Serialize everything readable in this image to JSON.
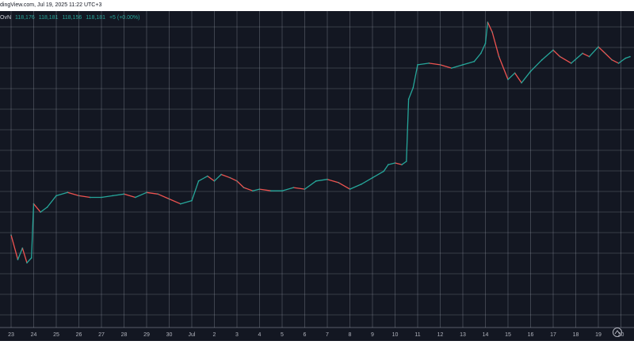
{
  "header": {
    "publisher_text": "dingView.com, Jul 19, 2025 11:22 UTC+3"
  },
  "ohlc": {
    "symbol_tail": "OvN",
    "open": "118,176",
    "high": "118,181",
    "low": "118,156",
    "close": "118,181",
    "change": "+5 (+0.00%)"
  },
  "colors": {
    "background": "#131722",
    "grid": "#9aa0ad",
    "up": "#26a69a",
    "down": "#ef5350",
    "axis_text": "#b2b5be"
  },
  "chart_data": {
    "type": "line",
    "title": "",
    "xlabel": "",
    "ylabel": "",
    "x_tick_labels": [
      "23",
      "24",
      "25",
      "26",
      "27",
      "28",
      "29",
      "30",
      "Jul",
      "2",
      "3",
      "4",
      "5",
      "6",
      "7",
      "8",
      "9",
      "10",
      "11",
      "12",
      "13",
      "14",
      "15",
      "16",
      "17",
      "18",
      "19",
      "20"
    ],
    "ylim": [
      103000,
      120500
    ],
    "grid": true,
    "series": [
      {
        "points": [
          [
            0.0,
            107300
          ],
          [
            0.3,
            105800
          ],
          [
            0.5,
            106500
          ],
          [
            0.7,
            105600
          ],
          [
            0.9,
            105900
          ],
          [
            1.0,
            109200
          ],
          [
            1.3,
            108700
          ],
          [
            1.6,
            109000
          ],
          [
            2.0,
            109700
          ],
          [
            2.5,
            109900
          ],
          [
            3.0,
            109700
          ],
          [
            3.5,
            109600
          ],
          [
            4.0,
            109600
          ],
          [
            4.5,
            109700
          ],
          [
            5.0,
            109800
          ],
          [
            5.5,
            109600
          ],
          [
            6.0,
            109900
          ],
          [
            6.5,
            109800
          ],
          [
            7.0,
            109500
          ],
          [
            7.5,
            109200
          ],
          [
            8.0,
            109400
          ],
          [
            8.3,
            110600
          ],
          [
            8.7,
            110900
          ],
          [
            9.0,
            110600
          ],
          [
            9.3,
            111000
          ],
          [
            9.7,
            110800
          ],
          [
            10.0,
            110600
          ],
          [
            10.3,
            110200
          ],
          [
            10.7,
            110000
          ],
          [
            11.0,
            110100
          ],
          [
            11.5,
            110000
          ],
          [
            12.0,
            110000
          ],
          [
            12.5,
            110200
          ],
          [
            13.0,
            110100
          ],
          [
            13.5,
            110600
          ],
          [
            14.0,
            110700
          ],
          [
            14.5,
            110500
          ],
          [
            15.0,
            110100
          ],
          [
            15.5,
            110400
          ],
          [
            16.0,
            110800
          ],
          [
            16.5,
            111200
          ],
          [
            16.7,
            111600
          ],
          [
            17.0,
            111700
          ],
          [
            17.3,
            111600
          ],
          [
            17.5,
            111800
          ],
          [
            17.6,
            115600
          ],
          [
            17.8,
            116300
          ],
          [
            18.0,
            117700
          ],
          [
            18.5,
            117800
          ],
          [
            19.0,
            117700
          ],
          [
            19.5,
            117500
          ],
          [
            20.0,
            117700
          ],
          [
            20.5,
            117900
          ],
          [
            20.8,
            118400
          ],
          [
            21.0,
            119000
          ],
          [
            21.1,
            120300
          ],
          [
            21.3,
            119700
          ],
          [
            21.6,
            118200
          ],
          [
            22.0,
            116800
          ],
          [
            22.3,
            117200
          ],
          [
            22.6,
            116600
          ],
          [
            23.0,
            117300
          ],
          [
            23.5,
            118000
          ],
          [
            24.0,
            118600
          ],
          [
            24.3,
            118200
          ],
          [
            24.8,
            117800
          ],
          [
            25.3,
            118400
          ],
          [
            25.6,
            118200
          ],
          [
            26.0,
            118800
          ],
          [
            26.3,
            118400
          ],
          [
            26.6,
            118000
          ],
          [
            26.9,
            117800
          ],
          [
            27.2,
            118100
          ],
          [
            27.4,
            118200
          ]
        ]
      }
    ]
  }
}
